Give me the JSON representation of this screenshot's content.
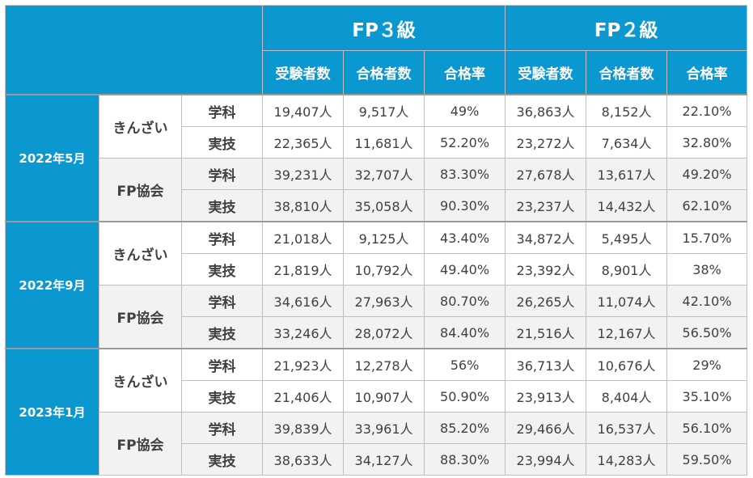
{
  "header": {
    "groups": [
      "FP３級",
      "FP２級"
    ],
    "columns": [
      "受験者数",
      "合格者数",
      "合格率",
      "受験者数",
      "合格者数",
      "合格率"
    ]
  },
  "periods": [
    {
      "label": "2022年5月",
      "orgs": [
        {
          "name": "きんざい",
          "rows": [
            {
              "exam": "学科",
              "values": [
                "19,407人",
                "9,517人",
                "49%",
                "36,863人",
                "8,152人",
                "22.10%"
              ]
            },
            {
              "exam": "実技",
              "values": [
                "22,365人",
                "11,681人",
                "52.20%",
                "23,272人",
                "7,634人",
                "32.80%"
              ]
            }
          ]
        },
        {
          "name": "FP協会",
          "rows": [
            {
              "exam": "学科",
              "values": [
                "39,231人",
                "32,707人",
                "83.30%",
                "27,678人",
                "13,617人",
                "49.20%"
              ]
            },
            {
              "exam": "実技",
              "values": [
                "38,810人",
                "35,058人",
                "90.30%",
                "23,237人",
                "14,432人",
                "62.10%"
              ]
            }
          ]
        }
      ]
    },
    {
      "label": "2022年9月",
      "orgs": [
        {
          "name": "きんざい",
          "rows": [
            {
              "exam": "学科",
              "values": [
                "21,018人",
                "9,125人",
                "43.40%",
                "34,872人",
                "5,495人",
                "15.70%"
              ]
            },
            {
              "exam": "実技",
              "values": [
                "21,819人",
                "10,792人",
                "49.40%",
                "23,392人",
                "8,901人",
                "38%"
              ]
            }
          ]
        },
        {
          "name": "FP協会",
          "rows": [
            {
              "exam": "学科",
              "values": [
                "34,616人",
                "27,963人",
                "80.70%",
                "26,265人",
                "11,074人",
                "42.10%"
              ]
            },
            {
              "exam": "実技",
              "values": [
                "33,246人",
                "28,072人",
                "84.40%",
                "21,516人",
                "12,167人",
                "56.50%"
              ]
            }
          ]
        }
      ]
    },
    {
      "label": "2023年1月",
      "orgs": [
        {
          "name": "きんざい",
          "rows": [
            {
              "exam": "学科",
              "values": [
                "21,923人",
                "12,278人",
                "56%",
                "36,713人",
                "10,676人",
                "29%"
              ]
            },
            {
              "exam": "実技",
              "values": [
                "21,406人",
                "10,907人",
                "50.90%",
                "23,913人",
                "8,404人",
                "35.10%"
              ]
            }
          ]
        },
        {
          "name": "FP協会",
          "rows": [
            {
              "exam": "学科",
              "values": [
                "39,839人",
                "33,961人",
                "85.20%",
                "29,466人",
                "16,537人",
                "56.10%"
              ]
            },
            {
              "exam": "実技",
              "values": [
                "38,633人",
                "34,127人",
                "88.30%",
                "23,994人",
                "14,283人",
                "59.50%"
              ]
            }
          ]
        }
      ]
    }
  ],
  "colors": {
    "header_bg": "#0b97d0",
    "header_text": "#ffffff",
    "row_alt_bg": "#f2f2f2",
    "grid": "#bfbfbf",
    "body_text": "#404040"
  }
}
